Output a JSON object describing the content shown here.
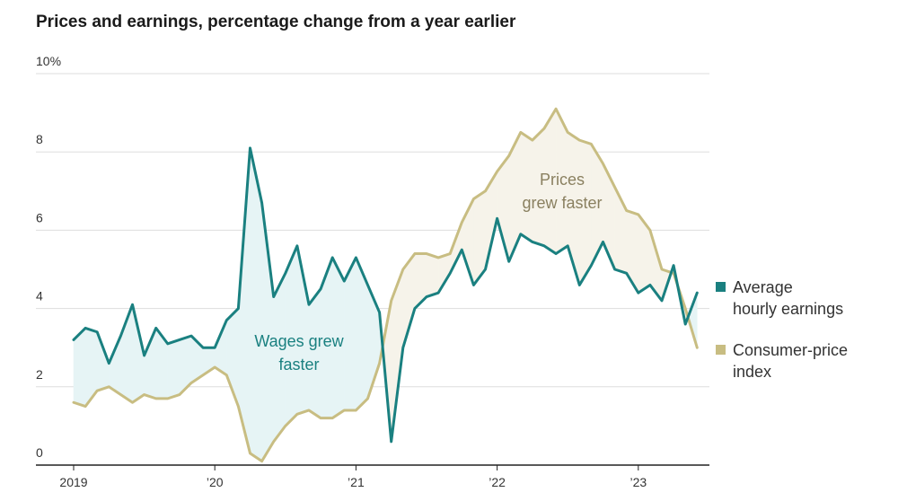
{
  "chart_data": {
    "type": "line",
    "title": "Prices and earnings, percentage change from a year earlier",
    "ylim": [
      0,
      10
    ],
    "y_ticks": [
      {
        "value": 0,
        "label": "0"
      },
      {
        "value": 2,
        "label": "2"
      },
      {
        "value": 4,
        "label": "4"
      },
      {
        "value": 6,
        "label": "6"
      },
      {
        "value": 8,
        "label": "8"
      },
      {
        "value": 10,
        "label": "10%"
      }
    ],
    "x_start": "2019-01",
    "x_ticks": [
      {
        "month_index": 0,
        "label": "2019"
      },
      {
        "month_index": 12,
        "label": "’20"
      },
      {
        "month_index": 24,
        "label": "’21"
      },
      {
        "month_index": 36,
        "label": "’22"
      },
      {
        "month_index": 48,
        "label": "’23"
      }
    ],
    "series": [
      {
        "name": "Average hourly earnings",
        "color": "#1a8080",
        "values": [
          3.2,
          3.5,
          3.4,
          2.6,
          3.3,
          4.1,
          2.8,
          3.5,
          3.1,
          3.2,
          3.3,
          3.0,
          3.0,
          3.7,
          4.0,
          8.1,
          6.7,
          4.3,
          4.9,
          5.6,
          4.1,
          4.5,
          5.3,
          4.7,
          5.3,
          4.6,
          3.9,
          0.6,
          3.0,
          4.0,
          4.3,
          4.4,
          4.9,
          5.5,
          4.6,
          5.0,
          6.3,
          5.2,
          5.9,
          5.7,
          5.6,
          5.4,
          5.6,
          4.6,
          5.1,
          5.7,
          5.0,
          4.9,
          4.4,
          4.6,
          4.2,
          5.1,
          3.6,
          4.4
        ]
      },
      {
        "name": "Consumer-price index",
        "color": "#c8bd82",
        "values": [
          1.6,
          1.5,
          1.9,
          2.0,
          1.8,
          1.6,
          1.8,
          1.7,
          1.7,
          1.8,
          2.1,
          2.3,
          2.5,
          2.3,
          1.5,
          0.3,
          0.1,
          0.6,
          1.0,
          1.3,
          1.4,
          1.2,
          1.2,
          1.4,
          1.4,
          1.7,
          2.6,
          4.2,
          5.0,
          5.4,
          5.4,
          5.3,
          5.4,
          6.2,
          6.8,
          7.0,
          7.5,
          7.9,
          8.5,
          8.3,
          8.6,
          9.1,
          8.5,
          8.3,
          8.2,
          7.7,
          7.1,
          6.5,
          6.4,
          6.0,
          5.0,
          4.9,
          4.0,
          3.0
        ]
      }
    ],
    "annotations": [
      {
        "lines": [
          "Wages grew",
          "faster"
        ],
        "color": "#1a8080"
      },
      {
        "lines": [
          "Prices",
          "grew faster"
        ],
        "color": "#8a8060"
      }
    ],
    "legend_position": "right"
  }
}
